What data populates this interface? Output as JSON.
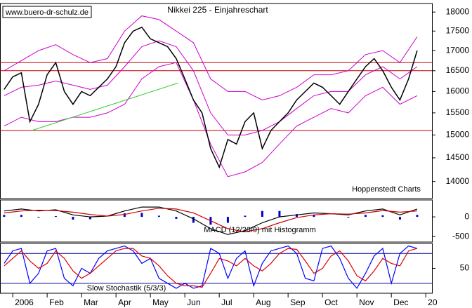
{
  "chart_data": [
    {
      "type": "line",
      "title": "Nikkei 225 - Einjahreschart",
      "source": "www.buero-dr-schulz.de",
      "annotations": [
        "Hoppenstedt Charts"
      ],
      "log_scale": true,
      "xlim": [
        -0.37,
        12.18
      ],
      "ylim": [
        13650,
        18230
      ],
      "yticks": [
        14000,
        14500,
        15000,
        15500,
        16000,
        16500,
        17000,
        17500,
        18000
      ],
      "hlines": [
        {
          "value": 16700,
          "color": "#cc0000"
        },
        {
          "value": 16500,
          "color": "#cc0000"
        },
        {
          "value": 15100,
          "color": "#cc0000"
        }
      ],
      "trendline": {
        "x": [
          0.55,
          4.8
        ],
        "values": [
          15100,
          16200
        ],
        "color": "#33cc33"
      },
      "x": [
        -0.25,
        0,
        0.25,
        0.5,
        0.75,
        1,
        1.25,
        1.5,
        1.75,
        2,
        2.25,
        2.5,
        2.75,
        3,
        3.25,
        3.5,
        3.75,
        4,
        4.25,
        4.5,
        4.75,
        5,
        5.25,
        5.5,
        5.75,
        6,
        6.25,
        6.5,
        6.75,
        7,
        7.25,
        7.5,
        7.75,
        8,
        8.25,
        8.5,
        8.75,
        9,
        9.25,
        9.5,
        9.75,
        10,
        10.25,
        10.5,
        10.75,
        11,
        11.25,
        11.5,
        11.75
      ],
      "series": [
        {
          "color": "#000000",
          "values": [
            16050,
            16350,
            16450,
            15300,
            15700,
            16400,
            16700,
            16000,
            15700,
            16000,
            15900,
            16100,
            16300,
            16600,
            17200,
            17500,
            17600,
            17300,
            17200,
            17100,
            16800,
            16300,
            15800,
            15500,
            14700,
            14300,
            14900,
            14800,
            15300,
            15500,
            14700,
            15100,
            15300,
            15500,
            15800,
            16000,
            16200,
            16100,
            15900,
            15700,
            16000,
            16300,
            16600,
            16800,
            16500,
            16100,
            15800,
            16300,
            17000
          ]
        }
      ],
      "bands": {
        "color": "#cc00cc",
        "x": [
          -0.25,
          0.25,
          0.75,
          1.25,
          1.75,
          2.25,
          2.75,
          3.25,
          3.75,
          4.25,
          4.75,
          5.25,
          5.75,
          6.25,
          6.75,
          7.25,
          7.75,
          8.25,
          8.75,
          9.25,
          9.75,
          10.25,
          10.75,
          11.25,
          11.75
        ],
        "upper": [
          16500,
          16750,
          17000,
          17150,
          16900,
          16700,
          16800,
          17500,
          17900,
          17800,
          17500,
          17200,
          16300,
          16000,
          16000,
          15800,
          15900,
          16100,
          16400,
          16400,
          16500,
          16900,
          17000,
          16700,
          17350
        ],
        "middle": [
          15900,
          16100,
          16150,
          16250,
          16150,
          16050,
          16150,
          16600,
          17100,
          17250,
          17100,
          16500,
          15500,
          15000,
          15000,
          15100,
          15300,
          15600,
          15900,
          16000,
          16000,
          16400,
          16600,
          16300,
          16600
        ],
        "lower": [
          15200,
          15400,
          15300,
          15300,
          15400,
          15400,
          15500,
          15700,
          16300,
          16600,
          16700,
          15800,
          14800,
          14100,
          14200,
          14400,
          14800,
          15200,
          15400,
          15600,
          15500,
          15900,
          16100,
          15700,
          15900
        ]
      }
    },
    {
      "type": "macd",
      "annotations": [
        "MACD (12/26/9) mit Histogramm"
      ],
      "xlim": [
        -0.37,
        12.18
      ],
      "ylim": [
        -640,
        430
      ],
      "yticks": [
        -500,
        0
      ],
      "x": [
        -0.25,
        0.25,
        0.75,
        1.25,
        1.75,
        2.25,
        2.75,
        3.25,
        3.75,
        4.25,
        4.75,
        5.25,
        5.75,
        6.25,
        6.75,
        7.25,
        7.75,
        8.25,
        8.75,
        9.25,
        9.75,
        10.25,
        10.75,
        11.25,
        11.75
      ],
      "series": [
        {
          "type": "bar",
          "color": "#0000cc",
          "values": [
            50,
            50,
            -20,
            20,
            -70,
            -60,
            0,
            90,
            100,
            30,
            -50,
            -150,
            -200,
            -150,
            30,
            150,
            150,
            70,
            50,
            0,
            -20,
            50,
            40,
            -70,
            50
          ]
        },
        {
          "type": "line",
          "color": "#000000",
          "values": [
            150,
            200,
            150,
            180,
            50,
            0,
            20,
            150,
            250,
            250,
            150,
            -50,
            -300,
            -450,
            -350,
            -150,
            0,
            50,
            100,
            80,
            50,
            150,
            200,
            50,
            200
          ]
        },
        {
          "type": "line",
          "color": "#cc0000",
          "values": [
            100,
            150,
            170,
            160,
            120,
            60,
            20,
            60,
            150,
            220,
            200,
            100,
            -100,
            -300,
            -380,
            -300,
            -150,
            -20,
            50,
            80,
            70,
            100,
            160,
            120,
            150
          ]
        }
      ]
    },
    {
      "type": "line",
      "annotations": [
        "Slow Stochastik (5/3/3)"
      ],
      "xlim": [
        -0.37,
        12.18
      ],
      "ylim": [
        0,
        100
      ],
      "yticks": [
        50
      ],
      "hlines": [
        {
          "value": 80,
          "color": "#000099"
        },
        {
          "value": 20,
          "color": "#000099"
        }
      ],
      "xticks": [
        {
          "value": 0,
          "label": "2006"
        },
        {
          "value": 1,
          "label": "Feb"
        },
        {
          "value": 2,
          "label": "Mar"
        },
        {
          "value": 3,
          "label": "Apr"
        },
        {
          "value": 4,
          "label": "May"
        },
        {
          "value": 5,
          "label": "Jun"
        },
        {
          "value": 6,
          "label": "Jul"
        },
        {
          "value": 7,
          "label": "Aug"
        },
        {
          "value": 8,
          "label": "Sep"
        },
        {
          "value": 9,
          "label": "Oct"
        },
        {
          "value": 10,
          "label": "Nov"
        },
        {
          "value": 11,
          "label": "Dec"
        },
        {
          "value": 12,
          "label": "20"
        }
      ],
      "x": [
        -0.25,
        0,
        0.25,
        0.5,
        0.75,
        1,
        1.25,
        1.5,
        1.75,
        2,
        2.25,
        2.5,
        2.75,
        3,
        3.25,
        3.5,
        3.75,
        4,
        4.25,
        4.5,
        4.75,
        5,
        5.25,
        5.5,
        5.75,
        6,
        6.25,
        6.5,
        6.75,
        7,
        7.25,
        7.5,
        7.75,
        8,
        8.25,
        8.5,
        8.75,
        9,
        9.25,
        9.5,
        9.75,
        10,
        10.25,
        10.5,
        10.75,
        11,
        11.25,
        11.5,
        11.75
      ],
      "series": [
        {
          "color": "#0000ff",
          "values": [
            60,
            85,
            90,
            20,
            40,
            85,
            90,
            30,
            15,
            50,
            40,
            70,
            85,
            90,
            95,
            85,
            60,
            70,
            30,
            20,
            10,
            20,
            10,
            15,
            90,
            80,
            30,
            70,
            85,
            15,
            60,
            85,
            90,
            95,
            80,
            30,
            25,
            90,
            95,
            70,
            30,
            10,
            40,
            75,
            90,
            20,
            80,
            95,
            90
          ]
        },
        {
          "color": "#dd0000",
          "values": [
            55,
            70,
            85,
            65,
            50,
            60,
            85,
            70,
            45,
            30,
            40,
            55,
            70,
            85,
            90,
            90,
            75,
            70,
            55,
            35,
            20,
            15,
            15,
            12,
            40,
            70,
            65,
            55,
            70,
            55,
            45,
            60,
            80,
            90,
            88,
            65,
            40,
            50,
            75,
            85,
            65,
            35,
            25,
            45,
            70,
            60,
            55,
            85,
            90
          ]
        }
      ]
    }
  ]
}
